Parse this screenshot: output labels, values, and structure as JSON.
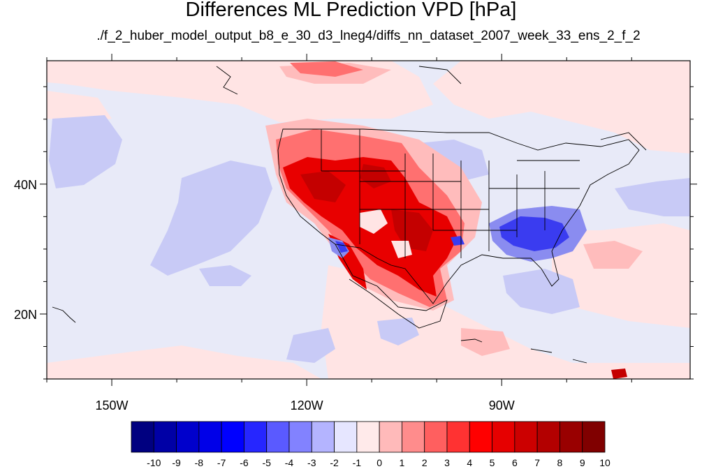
{
  "title": "Differences ML Prediction VPD [hPa]",
  "subtitle": "./f_2_huber_model_output_b8_e_30_d3_lneg4/diffs_nn_dataset_2007_week_33_ens_2_f_2",
  "map": {
    "lon_range": [
      -160,
      -61
    ],
    "lat_range": [
      10,
      59
    ],
    "lon_ticks": [
      {
        "lon": -150,
        "label": "150W"
      },
      {
        "lon": -120,
        "label": "120W"
      },
      {
        "lon": -90,
        "label": "90W"
      }
    ],
    "lat_ticks": [
      {
        "lat": 40,
        "label": "40N"
      },
      {
        "lat": 20,
        "label": "20N"
      }
    ]
  },
  "colorbar": {
    "levels": [
      "-10",
      "-9",
      "-8",
      "-7",
      "-6",
      "-5",
      "-4",
      "-3",
      "-2",
      "-1",
      "0",
      "1",
      "2",
      "3",
      "4",
      "5",
      "6",
      "7",
      "8",
      "9",
      "10"
    ],
    "colors": [
      "#000080",
      "#0000a6",
      "#0000cc",
      "#0000e8",
      "#0000ff",
      "#2626ff",
      "#5a5aff",
      "#8282ff",
      "#b4b4ff",
      "#e6e6ff",
      "#ffeaea",
      "#ffbaba",
      "#ff8c8c",
      "#ff5f5f",
      "#ff3232",
      "#ff0000",
      "#e60000",
      "#cc0000",
      "#b30000",
      "#990000",
      "#800000"
    ]
  },
  "palette": {
    "land_bg": "#e8eaf8",
    "pale_red": "#ffe4e4",
    "light_red": "#ffbcbc",
    "mid_red": "#ff7070",
    "strong_red": "#e80000",
    "dark_red": "#c40000",
    "pale_blue": "#c8caf6",
    "mid_blue": "#8a8cf0",
    "strong_blue": "#3a3cf0",
    "border_color": "#000000"
  }
}
